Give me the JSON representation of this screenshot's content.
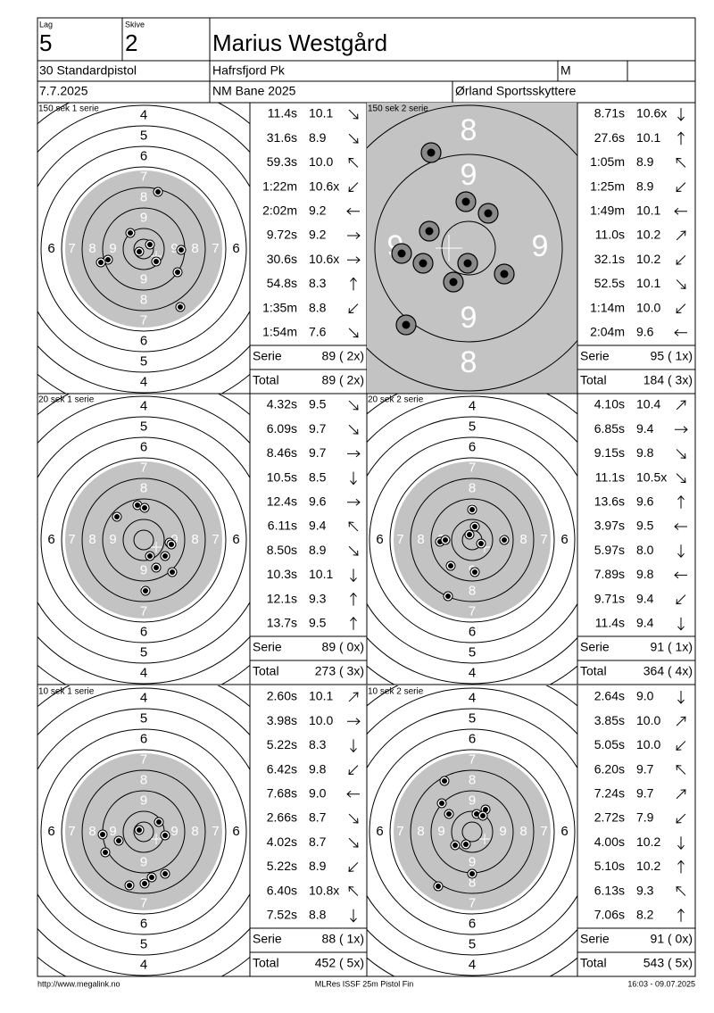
{
  "header": {
    "lag_label": "Lag",
    "lag": "5",
    "skive_label": "Skive",
    "skive": "2",
    "name": "Marius Westgård",
    "class": "30 Standardpistol",
    "club1": "Hafrsfjord Pk",
    "gender": "M",
    "date": "7.7.2025",
    "event": "NM Bane 2025",
    "club2": "Ørland Sportsskyttere"
  },
  "ring_labels": [
    "4",
    "5",
    "6",
    "7",
    "8",
    "9"
  ],
  "serie_label": "Serie",
  "total_label": "Total",
  "series": [
    {
      "title": "150 sek 1 serie",
      "shots": [
        {
          "time": "11.4s",
          "score": "10.1"
        },
        {
          "time": "31.6s",
          "score": "8.9"
        },
        {
          "time": "59.3s",
          "score": "10.0"
        },
        {
          "time": "1:22m",
          "score": "10.6x"
        },
        {
          "time": "2:02m",
          "score": "9.2"
        },
        {
          "time": "9.72s",
          "score": "9.2"
        },
        {
          "time": "30.6s",
          "score": "10.6x"
        },
        {
          "time": "54.8s",
          "score": "8.3"
        },
        {
          "time": "1:35m",
          "score": "8.8"
        },
        {
          "time": "1:54m",
          "score": "7.6"
        }
      ],
      "serie": "89 ( 2x)",
      "total": "89 ( 2x)"
    },
    {
      "title": "150 sek 2 serie",
      "shots": [
        {
          "time": "8.71s",
          "score": "10.6x"
        },
        {
          "time": "27.6s",
          "score": "10.1"
        },
        {
          "time": "1:05m",
          "score": "8.9"
        },
        {
          "time": "1:25m",
          "score": "8.9"
        },
        {
          "time": "1:49m",
          "score": "10.1"
        },
        {
          "time": "11.0s",
          "score": "10.2"
        },
        {
          "time": "32.1s",
          "score": "10.2"
        },
        {
          "time": "52.5s",
          "score": "10.1"
        },
        {
          "time": "1:14m",
          "score": "10.0"
        },
        {
          "time": "2:04m",
          "score": "9.6"
        }
      ],
      "serie": "95 ( 1x)",
      "total": "184 ( 3x)"
    },
    {
      "title": "20 sek 1 serie",
      "shots": [
        {
          "time": "4.32s",
          "score": "9.5"
        },
        {
          "time": "6.09s",
          "score": "9.7"
        },
        {
          "time": "8.46s",
          "score": "9.7"
        },
        {
          "time": "10.5s",
          "score": "8.5"
        },
        {
          "time": "12.4s",
          "score": "9.6"
        },
        {
          "time": "6.11s",
          "score": "9.4"
        },
        {
          "time": "8.50s",
          "score": "8.9"
        },
        {
          "time": "10.3s",
          "score": "10.1"
        },
        {
          "time": "12.1s",
          "score": "9.3"
        },
        {
          "time": "13.7s",
          "score": "9.5"
        }
      ],
      "serie": "89 ( 0x)",
      "total": "273 ( 3x)"
    },
    {
      "title": "20 sek 2 serie",
      "shots": [
        {
          "time": "4.10s",
          "score": "10.4"
        },
        {
          "time": "6.85s",
          "score": "9.4"
        },
        {
          "time": "9.15s",
          "score": "9.8"
        },
        {
          "time": "11.1s",
          "score": "10.5x"
        },
        {
          "time": "13.6s",
          "score": "9.6"
        },
        {
          "time": "3.97s",
          "score": "9.5"
        },
        {
          "time": "5.97s",
          "score": "8.0"
        },
        {
          "time": "7.89s",
          "score": "9.8"
        },
        {
          "time": "9.71s",
          "score": "9.4"
        },
        {
          "time": "11.4s",
          "score": "9.4"
        }
      ],
      "serie": "91 ( 1x)",
      "total": "364 ( 4x)"
    },
    {
      "title": "10 sek 1 serie",
      "shots": [
        {
          "time": "2.60s",
          "score": "10.1"
        },
        {
          "time": "3.98s",
          "score": "10.0"
        },
        {
          "time": "5.22s",
          "score": "8.3"
        },
        {
          "time": "6.42s",
          "score": "9.8"
        },
        {
          "time": "7.68s",
          "score": "9.0"
        },
        {
          "time": "2.66s",
          "score": "8.7"
        },
        {
          "time": "4.02s",
          "score": "8.7"
        },
        {
          "time": "5.22s",
          "score": "8.9"
        },
        {
          "time": "6.40s",
          "score": "10.8x"
        },
        {
          "time": "7.52s",
          "score": "8.8"
        }
      ],
      "serie": "88 ( 1x)",
      "total": "452 ( 5x)"
    },
    {
      "title": "10 sek 2 serie",
      "shots": [
        {
          "time": "2.64s",
          "score": "9.0"
        },
        {
          "time": "3.85s",
          "score": "10.0"
        },
        {
          "time": "5.05s",
          "score": "10.0"
        },
        {
          "time": "6.20s",
          "score": "9.7"
        },
        {
          "time": "7.24s",
          "score": "9.7"
        },
        {
          "time": "2.72s",
          "score": "7.9"
        },
        {
          "time": "4.00s",
          "score": "10.2"
        },
        {
          "time": "5.10s",
          "score": "10.2"
        },
        {
          "time": "6.13s",
          "score": "9.3"
        },
        {
          "time": "7.06s",
          "score": "8.2"
        }
      ],
      "serie": "91 ( 0x)",
      "total": "543 ( 5x)"
    }
  ],
  "footer": {
    "left": "http://www.megalink.no",
    "center": "MLRes ISSF 25m Pistol Fin",
    "right": "16:03 - 09.07.2025"
  }
}
